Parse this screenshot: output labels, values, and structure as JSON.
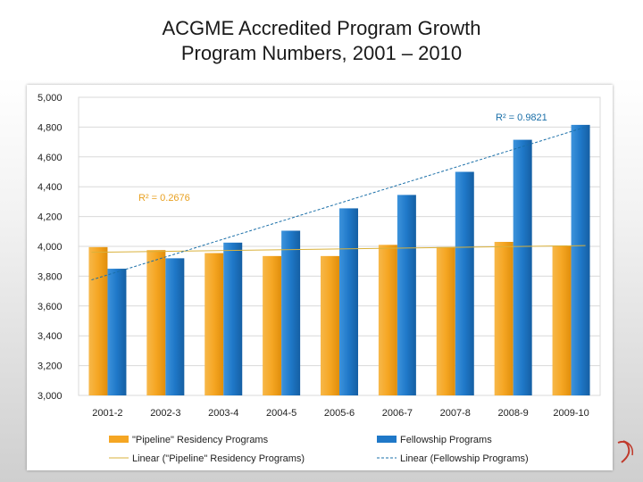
{
  "slide": {
    "title_line1": "ACGME Accredited Program Growth",
    "title_line2": "Program Numbers, 2001 – 2010"
  },
  "chart_data": {
    "type": "bar",
    "categories": [
      "2001-2",
      "2002-3",
      "2003-4",
      "2004-5",
      "2005-6",
      "2006-7",
      "2007-8",
      "2008-9",
      "2009-10"
    ],
    "series": [
      {
        "name": "\"Pipeline\" Residency Programs",
        "color": "#f5a623",
        "values": [
          3995,
          3975,
          3955,
          3935,
          3935,
          4010,
          3995,
          4030,
          4005
        ]
      },
      {
        "name": "Fellowship Programs",
        "color": "#1f78c8",
        "values": [
          3850,
          3920,
          4025,
          4105,
          4255,
          4345,
          4500,
          4715,
          4815
        ]
      }
    ],
    "trendlines": [
      {
        "name": "Linear (\"Pipeline\" Residency Programs)",
        "color": "#d9b13b",
        "y_start": 3960,
        "y_end": 4005,
        "r2_label": "R² = 0.2676"
      },
      {
        "name": "Linear (Fellowship Programs)",
        "color": "#1a6fa8",
        "y_start": 3775,
        "y_end": 4800,
        "r2_label": "R² = 0.9821"
      }
    ],
    "ylim": [
      3000,
      5000
    ],
    "yticks": [
      3000,
      3200,
      3400,
      3600,
      3800,
      4000,
      4200,
      4400,
      4600,
      4800,
      5000
    ],
    "ytick_labels": [
      "3,000",
      "3,200",
      "3,400",
      "3,600",
      "3,800",
      "4,000",
      "4,200",
      "4,400",
      "4,600",
      "4,800",
      "5,000"
    ],
    "grid": true,
    "legend_position": "bottom"
  }
}
